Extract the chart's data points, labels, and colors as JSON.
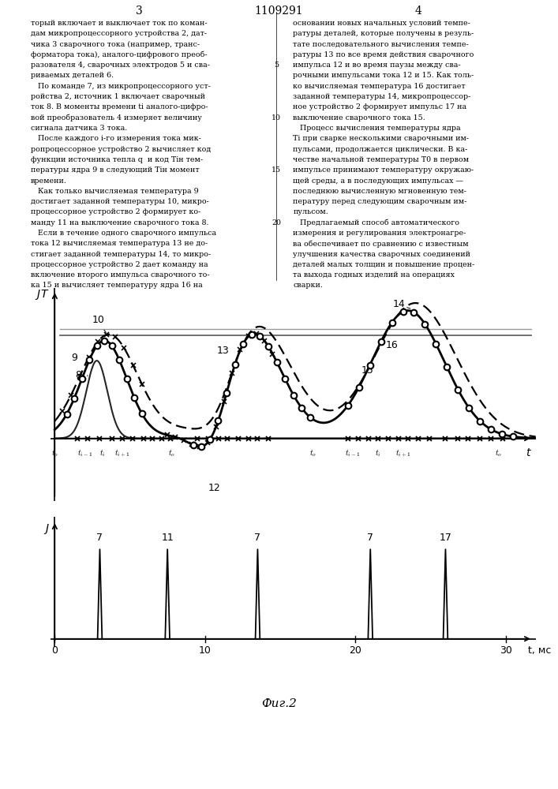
{
  "patent_number": "1109291",
  "page_left": "3",
  "page_right": "4",
  "fig_caption": "Фиг.2",
  "left_column_text": [
    "торый включает и выключает ток по коман-",
    "дам микропроцессорного устройства 2, дат-",
    "чика 3 сварочного тока (например, транс-",
    "форматора тока), аналого-цифрового преоб-",
    "разователя 4, сварочных электродов 5 и сва-",
    "риваемых деталей 6.",
    "   По команде 7, из микропроцессорного уст-",
    "ройства 2, источник 1 включает сварочный",
    "ток 8. В моменты времени ti аналого-цифро-",
    "вой преобразователь 4 измеряет величину",
    "сигнала датчика 3 тока.",
    "   После каждого i-го измерения тока мик-",
    "ропроцессорное устройство 2 вычисляет код",
    "функции источника тепла q  и код Tiн тем-",
    "пературы ядра 9 в следующий Tiн момент",
    "времени.",
    "   Как только вычисляемая температура 9",
    "достигает заданной температуры 10, микро-",
    "процессорное устройство 2 формирует ко-",
    "манду 11 на выключение сварочного тока 8.",
    "   Если в течение одного сварочного импульса",
    "тока 12 вычисляемая температура 13 не до-",
    "стигает заданной температуры 14, то микро-",
    "процессорное устройство 2 дает команду на",
    "включение второго импульса сварочного то-",
    "ка 15 и вычисляет температуру ядра 16 на"
  ],
  "right_column_text": [
    "основании новых начальных условий темпе-",
    "ратуры деталей, которые получены в резуль-",
    "тате последовательного вычисления темпе-",
    "ратуры 13 по все время действия сварочного",
    "импульса 12 и во время паузы между сва-",
    "рочными импульсами тока 12 и 15. Как толь-",
    "ко вычисляемая температура 16 достигает",
    "заданной температуры 14, микропроцессор-",
    "ное устройство 2 формирует импульс 17 на",
    "выключение сварочного тока 15.",
    "   Процесс вычисления температуры ядра",
    "Ti при сварке несколькими сварочными им-",
    "пульсами, продолжается циклически. В ка-",
    "честве начальной температуры T0 в первом",
    "импульсе принимают температуру окружаю-",
    "щей среды, а в последующих импульсах —",
    "последнюю вычисленную мгновенную тем-",
    "пературу перед следующим сварочным им-",
    "пульсом.",
    "   Предлагаемый способ автоматического",
    "измерения и регулирования электронагре-",
    "ва обеспечивает по сравнению с известным",
    "улучшения качества сварочных соединений",
    "деталей малых толщин и повышение процен-",
    "та выхода годных изделий на операциях",
    "сварки."
  ],
  "center_line_numbers": [
    "5",
    "10",
    "15",
    "20"
  ],
  "upper_plot": {
    "xlim": [
      -0.3,
      32
    ],
    "ylim": [
      -0.5,
      1.2
    ],
    "threshold": 0.82,
    "threshold2": 0.87,
    "x_labels": {
      "positions": [
        0.0,
        2.0,
        3.2,
        4.5,
        7.8,
        17.2,
        19.8,
        21.5,
        23.2,
        29.5
      ],
      "texts": [
        "t_o",
        "t_{i-1}",
        "t_i",
        "t_{i+1}",
        "t_o",
        "t_o",
        "t_{i-1}",
        "t_i",
        "t_{i+1}",
        "t_o"
      ]
    }
  },
  "lower_plot": {
    "xlim": [
      -0.3,
      32
    ],
    "ylim": [
      -0.1,
      1.5
    ],
    "x_ticks": [
      0,
      10,
      20,
      30
    ],
    "pulse_positions": [
      3.0,
      7.5,
      13.5,
      21.0,
      26.0
    ],
    "pulse_labels": [
      "7",
      "11",
      "7",
      "7",
      "17"
    ]
  }
}
